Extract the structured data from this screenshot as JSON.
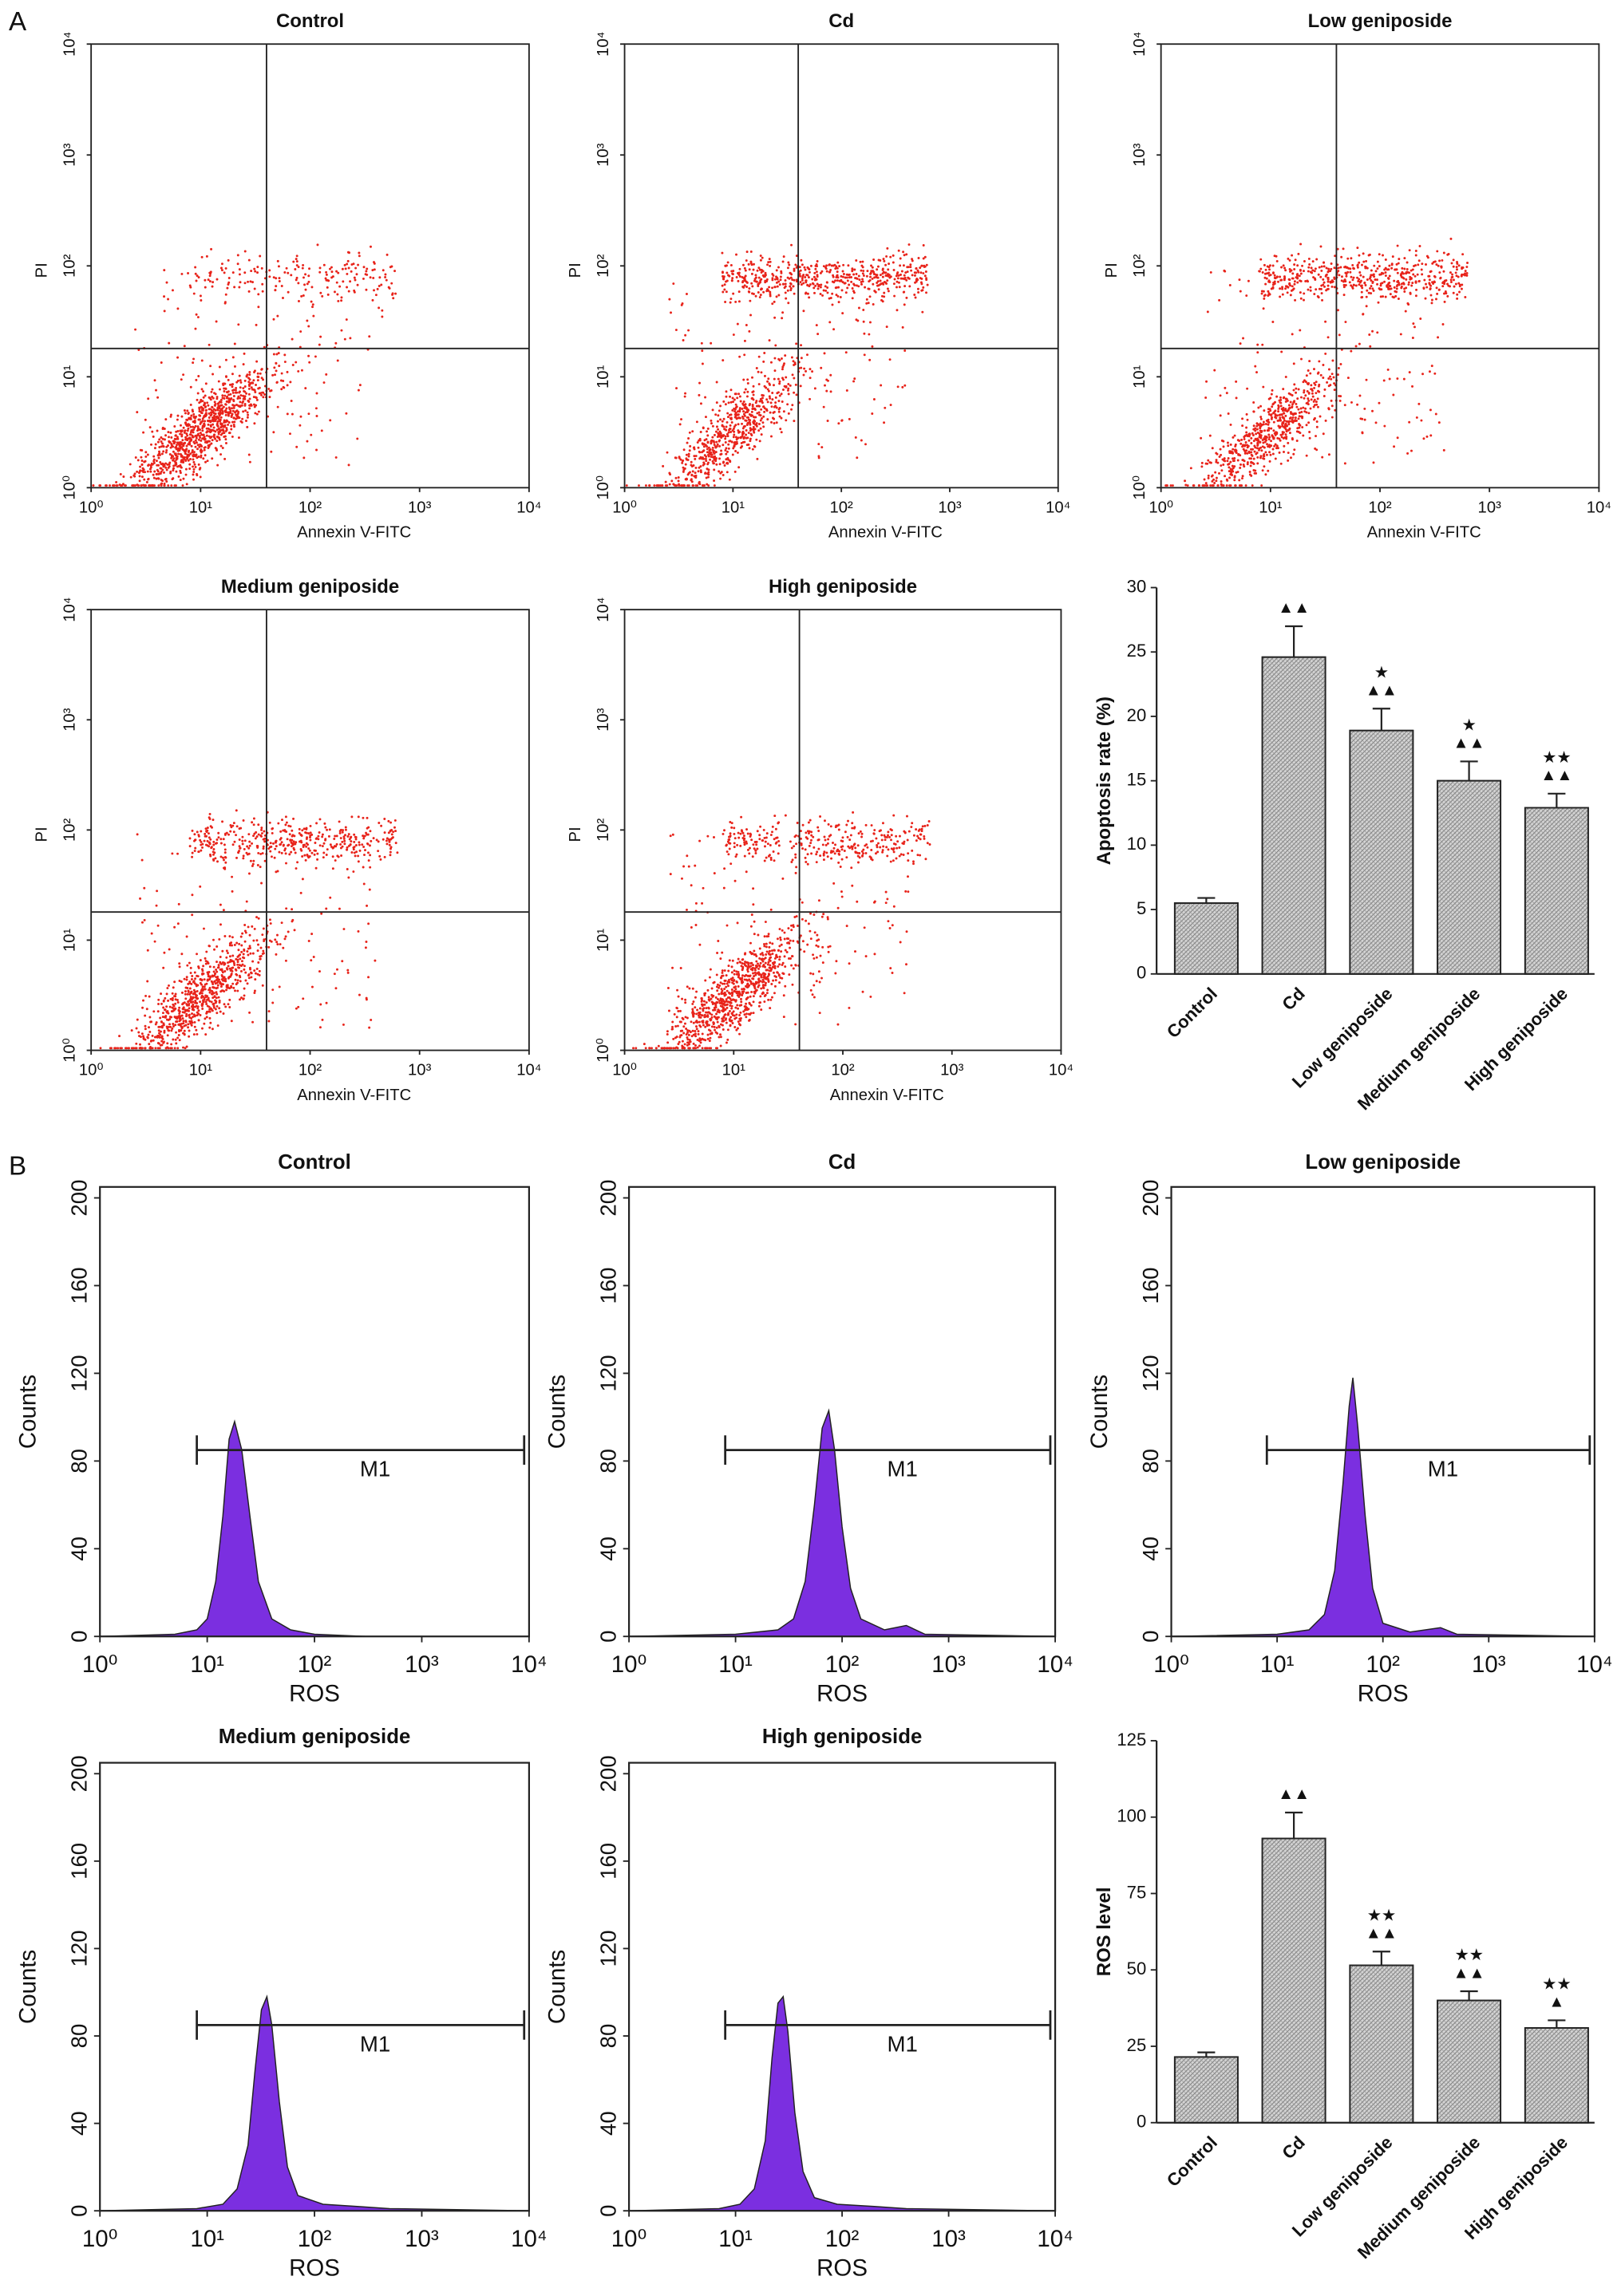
{
  "panel_labels": [
    "A",
    "B"
  ],
  "chart_data": [
    {
      "type": "scatter",
      "title": "Control",
      "xlabel": "Annexin V-FITC",
      "ylabel": "PI",
      "color": "#e8231a",
      "log": true,
      "xlim": [
        1,
        10000
      ],
      "ylim": [
        1,
        10000
      ],
      "quadrant": [
        40,
        18
      ],
      "xticks": [
        {
          "value": 1,
          "label": "10⁰"
        },
        {
          "value": 10,
          "label": "10¹"
        },
        {
          "value": 100,
          "label": "10²"
        },
        {
          "value": 1000,
          "label": "10³"
        },
        {
          "value": 10000,
          "label": "10⁴"
        }
      ],
      "yticks": [
        {
          "value": 1,
          "label": "10⁰"
        },
        {
          "value": 10,
          "label": "10¹"
        },
        {
          "value": 100,
          "label": "10²"
        },
        {
          "value": 1000,
          "label": "10³"
        },
        {
          "value": 10000,
          "label": "10⁴"
        }
      ]
    },
    {
      "type": "scatter",
      "title": "Cd",
      "xlabel": "Annexin V-FITC",
      "ylabel": "PI",
      "color": "#e8231a",
      "log": true,
      "xlim": [
        1,
        10000
      ],
      "ylim": [
        1,
        10000
      ],
      "quadrant": [
        40,
        18
      ],
      "xticks": [
        {
          "value": 1,
          "label": "10⁰"
        },
        {
          "value": 10,
          "label": "10¹"
        },
        {
          "value": 100,
          "label": "10²"
        },
        {
          "value": 1000,
          "label": "10³"
        },
        {
          "value": 10000,
          "label": "10⁴"
        }
      ],
      "yticks": [
        {
          "value": 1,
          "label": "10⁰"
        },
        {
          "value": 10,
          "label": "10¹"
        },
        {
          "value": 100,
          "label": "10²"
        },
        {
          "value": 1000,
          "label": "10³"
        },
        {
          "value": 10000,
          "label": "10⁴"
        }
      ]
    },
    {
      "type": "scatter",
      "title": "Low geniposide",
      "xlabel": "Annexin V-FITC",
      "ylabel": "PI",
      "color": "#e8231a",
      "log": true,
      "xlim": [
        1,
        10000
      ],
      "ylim": [
        1,
        10000
      ],
      "quadrant": [
        40,
        18
      ],
      "xticks": [
        {
          "value": 1,
          "label": "10⁰"
        },
        {
          "value": 10,
          "label": "10¹"
        },
        {
          "value": 100,
          "label": "10²"
        },
        {
          "value": 1000,
          "label": "10³"
        },
        {
          "value": 10000,
          "label": "10⁴"
        }
      ],
      "yticks": [
        {
          "value": 1,
          "label": "10⁰"
        },
        {
          "value": 10,
          "label": "10¹"
        },
        {
          "value": 100,
          "label": "10²"
        },
        {
          "value": 1000,
          "label": "10³"
        },
        {
          "value": 10000,
          "label": "10⁴"
        }
      ]
    },
    {
      "type": "scatter",
      "title": "Medium geniposide",
      "xlabel": "Annexin V-FITC",
      "ylabel": "PI",
      "color": "#e8231a",
      "log": true,
      "xlim": [
        1,
        10000
      ],
      "ylim": [
        1,
        10000
      ],
      "quadrant": [
        40,
        18
      ],
      "xticks": [
        {
          "value": 1,
          "label": "10⁰"
        },
        {
          "value": 10,
          "label": "10¹"
        },
        {
          "value": 100,
          "label": "10²"
        },
        {
          "value": 1000,
          "label": "10³"
        },
        {
          "value": 10000,
          "label": "10⁴"
        }
      ],
      "yticks": [
        {
          "value": 1,
          "label": "10⁰"
        },
        {
          "value": 10,
          "label": "10¹"
        },
        {
          "value": 100,
          "label": "10²"
        },
        {
          "value": 1000,
          "label": "10³"
        },
        {
          "value": 10000,
          "label": "10⁴"
        }
      ]
    },
    {
      "type": "scatter",
      "title": "High geniposide",
      "xlabel": "Annexin V-FITC",
      "ylabel": "PI",
      "color": "#e8231a",
      "log": true,
      "xlim": [
        1,
        10000
      ],
      "ylim": [
        1,
        10000
      ],
      "quadrant": [
        40,
        18
      ],
      "xticks": [
        {
          "value": 1,
          "label": "10⁰"
        },
        {
          "value": 10,
          "label": "10¹"
        },
        {
          "value": 100,
          "label": "10²"
        },
        {
          "value": 1000,
          "label": "10³"
        },
        {
          "value": 10000,
          "label": "10⁴"
        }
      ],
      "yticks": [
        {
          "value": 1,
          "label": "10⁰"
        },
        {
          "value": 10,
          "label": "10¹"
        },
        {
          "value": 100,
          "label": "10²"
        },
        {
          "value": 1000,
          "label": "10³"
        },
        {
          "value": 10000,
          "label": "10⁴"
        }
      ]
    },
    {
      "type": "bar",
      "ylabel": "Apoptosis rate (%)",
      "categories": [
        "Control",
        "Cd",
        "Low geniposide",
        "Medium geniposide",
        "High geniposide"
      ],
      "values": [
        5.5,
        24.6,
        18.9,
        15.0,
        12.9
      ],
      "errors": [
        0.4,
        2.4,
        1.7,
        1.5,
        1.1
      ],
      "annotations": [
        [],
        [
          "▲▲"
        ],
        [
          "★",
          "▲▲"
        ],
        [
          "★",
          "▲▲"
        ],
        [
          "★★",
          "▲▲"
        ]
      ],
      "color": "#d4d4d4",
      "ylim": [
        0,
        30
      ],
      "yticks": [
        0,
        5,
        10,
        15,
        20,
        25,
        30
      ]
    },
    {
      "type": "area",
      "title": "Control",
      "xlabel": "ROS",
      "ylabel": "Counts",
      "color": "#7b2fe0",
      "logx": true,
      "xlim": [
        1,
        10000
      ],
      "ylim": [
        0,
        205
      ],
      "x": [
        1,
        5,
        8,
        10,
        12,
        14,
        16,
        18,
        21,
        25,
        30,
        40,
        60,
        100,
        300,
        10000
      ],
      "values": [
        0,
        1,
        3,
        8,
        25,
        55,
        90,
        98,
        85,
        55,
        25,
        8,
        3,
        1,
        0,
        0
      ],
      "gate": {
        "label": "M1",
        "from": 8,
        "to": 9000,
        "level": 85
      },
      "xticks": [
        {
          "value": 1,
          "label": "10⁰"
        },
        {
          "value": 10,
          "label": "10¹"
        },
        {
          "value": 100,
          "label": "10²"
        },
        {
          "value": 1000,
          "label": "10³"
        },
        {
          "value": 10000,
          "label": "10⁴"
        }
      ],
      "yticks": [
        0,
        40,
        80,
        120,
        160,
        200
      ]
    },
    {
      "type": "area",
      "title": "Cd",
      "xlabel": "ROS",
      "ylabel": "Counts",
      "color": "#7b2fe0",
      "logx": true,
      "xlim": [
        1,
        10000
      ],
      "ylim": [
        0,
        205
      ],
      "x": [
        1,
        10,
        25,
        35,
        45,
        55,
        65,
        75,
        85,
        100,
        120,
        150,
        250,
        400,
        600,
        10000
      ],
      "values": [
        0,
        1,
        3,
        8,
        25,
        60,
        95,
        103,
        85,
        50,
        22,
        8,
        3,
        5,
        1,
        0
      ],
      "gate": {
        "label": "M1",
        "from": 8,
        "to": 9000,
        "level": 85
      },
      "xticks": [
        {
          "value": 1,
          "label": "10⁰"
        },
        {
          "value": 10,
          "label": "10¹"
        },
        {
          "value": 100,
          "label": "10²"
        },
        {
          "value": 1000,
          "label": "10³"
        },
        {
          "value": 10000,
          "label": "10⁴"
        }
      ],
      "yticks": [
        0,
        40,
        80,
        120,
        160,
        200
      ]
    },
    {
      "type": "area",
      "title": "Low geniposide",
      "xlabel": "ROS",
      "ylabel": "Counts",
      "color": "#7b2fe0",
      "logx": true,
      "xlim": [
        1,
        10000
      ],
      "ylim": [
        0,
        205
      ],
      "x": [
        1,
        10,
        20,
        28,
        35,
        42,
        48,
        52,
        58,
        68,
        80,
        100,
        180,
        350,
        500,
        10000
      ],
      "values": [
        0,
        1,
        3,
        10,
        30,
        70,
        105,
        118,
        95,
        55,
        22,
        6,
        2,
        4,
        1,
        0
      ],
      "gate": {
        "label": "M1",
        "from": 8,
        "to": 9000,
        "level": 85
      },
      "xticks": [
        {
          "value": 1,
          "label": "10⁰"
        },
        {
          "value": 10,
          "label": "10¹"
        },
        {
          "value": 100,
          "label": "10²"
        },
        {
          "value": 1000,
          "label": "10³"
        },
        {
          "value": 10000,
          "label": "10⁴"
        }
      ],
      "yticks": [
        0,
        40,
        80,
        120,
        160,
        200
      ]
    },
    {
      "type": "area",
      "title": "Medium geniposide",
      "xlabel": "ROS",
      "ylabel": "Counts",
      "color": "#7b2fe0",
      "logx": true,
      "xlim": [
        1,
        10000
      ],
      "ylim": [
        0,
        205
      ],
      "x": [
        1,
        8,
        14,
        19,
        24,
        28,
        32,
        36,
        40,
        47,
        56,
        70,
        120,
        250,
        500,
        10000
      ],
      "values": [
        0,
        1,
        3,
        10,
        30,
        65,
        92,
        98,
        85,
        50,
        20,
        7,
        3,
        2,
        1,
        0
      ],
      "gate": {
        "label": "M1",
        "from": 8,
        "to": 9000,
        "level": 85
      },
      "xticks": [
        {
          "value": 1,
          "label": "10⁰"
        },
        {
          "value": 10,
          "label": "10¹"
        },
        {
          "value": 100,
          "label": "10²"
        },
        {
          "value": 1000,
          "label": "10³"
        },
        {
          "value": 10000,
          "label": "10⁴"
        }
      ],
      "yticks": [
        0,
        40,
        80,
        120,
        160,
        200
      ]
    },
    {
      "type": "area",
      "title": "High geniposide",
      "xlabel": "ROS",
      "ylabel": "Counts",
      "color": "#7b2fe0",
      "logx": true,
      "xlim": [
        1,
        10000
      ],
      "ylim": [
        0,
        205
      ],
      "x": [
        1,
        7,
        11,
        15,
        19,
        22,
        25,
        28,
        31,
        36,
        43,
        55,
        90,
        200,
        400,
        10000
      ],
      "values": [
        0,
        1,
        3,
        10,
        32,
        70,
        95,
        98,
        82,
        45,
        18,
        6,
        3,
        2,
        1,
        0
      ],
      "gate": {
        "label": "M1",
        "from": 8,
        "to": 9000,
        "level": 85
      },
      "xticks": [
        {
          "value": 1,
          "label": "10⁰"
        },
        {
          "value": 10,
          "label": "10¹"
        },
        {
          "value": 100,
          "label": "10²"
        },
        {
          "value": 1000,
          "label": "10³"
        },
        {
          "value": 10000,
          "label": "10⁴"
        }
      ],
      "yticks": [
        0,
        40,
        80,
        120,
        160,
        200
      ]
    },
    {
      "type": "bar",
      "ylabel": "ROS level",
      "categories": [
        "Control",
        "Cd",
        "Low geniposide",
        "Medium geniposide",
        "High geniposide"
      ],
      "values": [
        21.5,
        93,
        51.5,
        40,
        31
      ],
      "errors": [
        1.5,
        8.5,
        4.5,
        3,
        2.5
      ],
      "annotations": [
        [],
        [
          "▲▲"
        ],
        [
          "★★",
          "▲▲"
        ],
        [
          "★★",
          "▲▲"
        ],
        [
          "★★",
          "▲"
        ]
      ],
      "color": "#d4d4d4",
      "ylim": [
        0,
        125
      ],
      "yticks": [
        0,
        25,
        50,
        75,
        100,
        125
      ]
    }
  ]
}
